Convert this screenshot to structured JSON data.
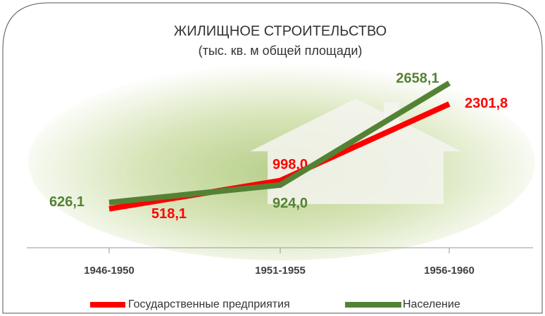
{
  "chart_data": {
    "type": "line",
    "title": "ЖИЛИЩНОЕ СТРОИТЕЛЬСТВО",
    "subtitle": "(тыс. кв. м общей площади)",
    "categories": [
      "1946-1950",
      "1951-1955",
      "1956-1960"
    ],
    "series": [
      {
        "name": "Государственные предприятия",
        "color": "#ff0000",
        "values": [
          518.1,
          998.0,
          2301.8
        ],
        "value_labels": [
          "518,1",
          "998,0",
          "2301,8"
        ]
      },
      {
        "name": "Население",
        "color": "#548235",
        "values": [
          626.1,
          924.0,
          2658.1
        ],
        "value_labels": [
          "626,1",
          "924,0",
          "2658,1"
        ]
      }
    ],
    "legend": "bottom"
  }
}
